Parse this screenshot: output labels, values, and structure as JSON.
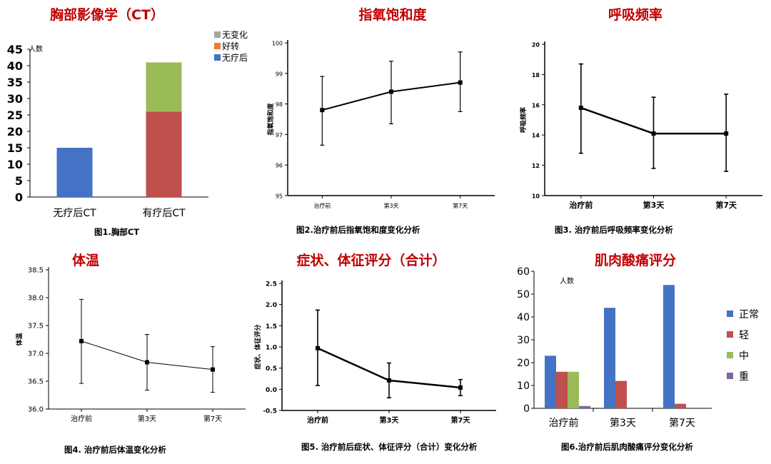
{
  "panels": {
    "p1": {
      "title": "胸部影像学（CT）",
      "caption": "图1.胸部CT",
      "chart_data": {
        "type": "bar",
        "stacked": true,
        "categories": [
          "无疗后CT",
          "有疗后CT"
        ],
        "series": [
          {
            "name": "无疗后",
            "values": [
              15,
              0
            ],
            "color": "#4472c4"
          },
          {
            "name": "好转",
            "values": [
              0,
              26
            ],
            "color": "#c0504d"
          },
          {
            "name": "无变化",
            "values": [
              0,
              15
            ],
            "color": "#9bbb59"
          }
        ],
        "legend": [
          "无变化",
          "好转",
          "无疗后"
        ],
        "legend_colors": [
          "#a5a5a5",
          "#ed7d31",
          "#4472c4"
        ],
        "ylabel": "人数",
        "ylim": [
          0,
          45
        ],
        "yticks": [
          0,
          5,
          10,
          15,
          20,
          25,
          30,
          35,
          40,
          45
        ]
      }
    },
    "p2": {
      "title": "指氧饱和度",
      "caption": "图2.治疗前后指氧饱和度变化分析",
      "chart_data": {
        "type": "line",
        "categories": [
          "治疗前",
          "第3天",
          "第7天"
        ],
        "values": [
          97.8,
          98.4,
          98.7
        ],
        "err_low": [
          96.65,
          97.35,
          97.75
        ],
        "err_high": [
          98.9,
          99.4,
          99.7
        ],
        "ylabel": "指氧饱和度",
        "ylim": [
          95,
          100
        ],
        "yticks": [
          95,
          96,
          97,
          98,
          99,
          100
        ]
      }
    },
    "p3": {
      "title": "呼吸频率",
      "caption": "图3. 治疗前后呼吸频率变化分析",
      "chart_data": {
        "type": "line",
        "categories": [
          "治疗前",
          "第3天",
          "第7天"
        ],
        "values": [
          15.8,
          14.1,
          14.1
        ],
        "err_low": [
          12.8,
          11.8,
          11.6
        ],
        "err_high": [
          18.7,
          16.5,
          16.7
        ],
        "ylabel": "呼吸频率",
        "ylim": [
          10,
          20
        ],
        "yticks": [
          10,
          12,
          14,
          16,
          18,
          20
        ]
      }
    },
    "p4": {
      "title": "体温",
      "caption": "图4. 治疗前后体温变化分析",
      "chart_data": {
        "type": "line",
        "categories": [
          "治疗前",
          "第3天",
          "第7天"
        ],
        "values": [
          37.22,
          36.84,
          36.71
        ],
        "err_low": [
          36.46,
          36.34,
          36.3
        ],
        "err_high": [
          37.97,
          37.34,
          37.12
        ],
        "ylabel": "体温",
        "ylim": [
          36.0,
          38.5
        ],
        "yticks": [
          "36.0",
          "36.5",
          "37.0",
          "37.5",
          "38.0",
          "38.5"
        ]
      }
    },
    "p5": {
      "title": "症状、体征评分（合计）",
      "caption": "图5. 治疗前后症状、体征评分（合计）变化分析",
      "chart_data": {
        "type": "line",
        "categories": [
          "治疗前",
          "第3天",
          "第7天"
        ],
        "values": [
          0.97,
          0.21,
          0.04
        ],
        "err_low": [
          0.09,
          -0.2,
          -0.15
        ],
        "err_high": [
          1.87,
          0.62,
          0.23
        ],
        "ylabel": "症状、体征评分",
        "ylim": [
          -0.5,
          2.5
        ],
        "yticks": [
          "-0.5",
          "0.0",
          "0.5",
          "1.0",
          "1.5",
          "2.0",
          "2.5"
        ]
      }
    },
    "p6": {
      "title": "肌肉酸痛评分",
      "caption": "图6.治疗前后肌肉酸痛评分变化分析",
      "chart_data": {
        "type": "bar",
        "categories": [
          "治疗前",
          "第3天",
          "第7天"
        ],
        "series": [
          {
            "name": "正常",
            "values": [
              23,
              44,
              54
            ],
            "color": "#4472c4"
          },
          {
            "name": "轻",
            "values": [
              16,
              12,
              2
            ],
            "color": "#c0504d"
          },
          {
            "name": "中",
            "values": [
              16,
              0,
              0
            ],
            "color": "#9bbb59"
          },
          {
            "name": "重",
            "values": [
              1,
              0,
              0
            ],
            "color": "#8064a2"
          }
        ],
        "ylabel": "人数",
        "ylim": [
          0,
          60
        ],
        "yticks": [
          0,
          10,
          20,
          30,
          40,
          50,
          60
        ]
      }
    }
  }
}
